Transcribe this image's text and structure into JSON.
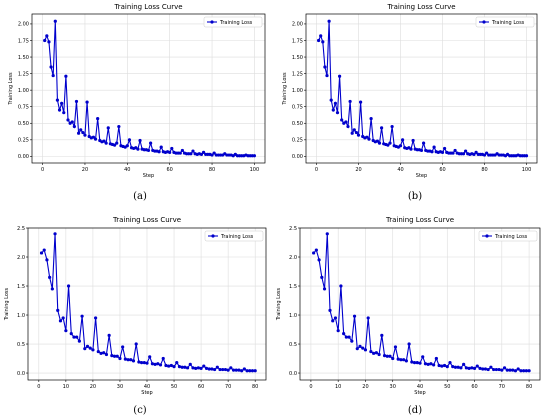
{
  "colors": {
    "series": "#0000cc",
    "grid": "#dddddd",
    "axis": "#000000"
  },
  "chart_data": [
    {
      "type": "line",
      "panel": "a",
      "caption": "(a)",
      "title": "Training Loss Curve",
      "xlabel": "Step",
      "ylabel": "Training Loss",
      "xlim": [
        -5,
        105
      ],
      "ylim": [
        -0.1,
        2.15
      ],
      "xticks": [
        0,
        20,
        40,
        60,
        80,
        100
      ],
      "yticks": [
        0.0,
        0.25,
        0.5,
        0.75,
        1.0,
        1.25,
        1.5,
        1.75,
        2.0
      ],
      "ytick_labels": [
        "0.00",
        "0.25",
        "0.50",
        "0.75",
        "1.00",
        "1.25",
        "1.50",
        "1.75",
        "2.00"
      ],
      "grid": true,
      "legend": "top-right",
      "series": [
        {
          "name": "Training Loss",
          "x": [
            1,
            2,
            3,
            4,
            5,
            6,
            7,
            8,
            9,
            10,
            11,
            12,
            13,
            14,
            15,
            16,
            17,
            18,
            19,
            20,
            21,
            22,
            23,
            24,
            25,
            26,
            27,
            28,
            29,
            30,
            31,
            32,
            33,
            34,
            35,
            36,
            37,
            38,
            39,
            40,
            41,
            42,
            43,
            44,
            45,
            46,
            47,
            48,
            49,
            50,
            51,
            52,
            53,
            54,
            55,
            56,
            57,
            58,
            59,
            60,
            61,
            62,
            63,
            64,
            65,
            66,
            67,
            68,
            69,
            70,
            71,
            72,
            73,
            74,
            75,
            76,
            77,
            78,
            79,
            80,
            81,
            82,
            83,
            84,
            85,
            86,
            87,
            88,
            89,
            90,
            91,
            92,
            93,
            94,
            95,
            96,
            97,
            98,
            99,
            100
          ],
          "y": [
            1.75,
            1.82,
            1.73,
            1.35,
            1.22,
            2.04,
            0.85,
            0.7,
            0.8,
            0.66,
            1.21,
            0.55,
            0.5,
            0.52,
            0.45,
            0.83,
            0.35,
            0.4,
            0.36,
            0.32,
            0.82,
            0.3,
            0.28,
            0.29,
            0.26,
            0.57,
            0.24,
            0.22,
            0.23,
            0.2,
            0.43,
            0.19,
            0.18,
            0.17,
            0.2,
            0.45,
            0.16,
            0.15,
            0.14,
            0.16,
            0.25,
            0.13,
            0.12,
            0.13,
            0.11,
            0.24,
            0.11,
            0.1,
            0.1,
            0.09,
            0.2,
            0.09,
            0.08,
            0.08,
            0.07,
            0.14,
            0.07,
            0.06,
            0.07,
            0.06,
            0.12,
            0.06,
            0.05,
            0.05,
            0.05,
            0.09,
            0.05,
            0.04,
            0.04,
            0.04,
            0.08,
            0.04,
            0.03,
            0.04,
            0.03,
            0.06,
            0.03,
            0.03,
            0.03,
            0.02,
            0.05,
            0.02,
            0.02,
            0.02,
            0.02,
            0.04,
            0.02,
            0.02,
            0.02,
            0.01,
            0.03,
            0.01,
            0.01,
            0.01,
            0.01,
            0.02,
            0.01,
            0.01,
            0.01,
            0.01
          ]
        }
      ]
    },
    {
      "type": "line",
      "panel": "b",
      "caption": "(b)",
      "title": "Training Loss Curve",
      "xlabel": "Step",
      "ylabel": "Training Loss",
      "xlim": [
        -5,
        105
      ],
      "ylim": [
        -0.1,
        2.15
      ],
      "xticks": [
        0,
        20,
        40,
        60,
        80,
        100
      ],
      "yticks": [
        0.0,
        0.25,
        0.5,
        0.75,
        1.0,
        1.25,
        1.5,
        1.75,
        2.0
      ],
      "ytick_labels": [
        "0.00",
        "0.25",
        "0.50",
        "0.75",
        "1.00",
        "1.25",
        "1.50",
        "1.75",
        "2.00"
      ],
      "grid": true,
      "legend": "top-right",
      "series": [
        {
          "name": "Training Loss",
          "x": [
            1,
            2,
            3,
            4,
            5,
            6,
            7,
            8,
            9,
            10,
            11,
            12,
            13,
            14,
            15,
            16,
            17,
            18,
            19,
            20,
            21,
            22,
            23,
            24,
            25,
            26,
            27,
            28,
            29,
            30,
            31,
            32,
            33,
            34,
            35,
            36,
            37,
            38,
            39,
            40,
            41,
            42,
            43,
            44,
            45,
            46,
            47,
            48,
            49,
            50,
            51,
            52,
            53,
            54,
            55,
            56,
            57,
            58,
            59,
            60,
            61,
            62,
            63,
            64,
            65,
            66,
            67,
            68,
            69,
            70,
            71,
            72,
            73,
            74,
            75,
            76,
            77,
            78,
            79,
            80,
            81,
            82,
            83,
            84,
            85,
            86,
            87,
            88,
            89,
            90,
            91,
            92,
            93,
            94,
            95,
            96,
            97,
            98,
            99,
            100
          ],
          "y": [
            1.75,
            1.82,
            1.73,
            1.35,
            1.22,
            2.04,
            0.85,
            0.7,
            0.8,
            0.66,
            1.21,
            0.55,
            0.5,
            0.52,
            0.45,
            0.83,
            0.35,
            0.4,
            0.36,
            0.32,
            0.82,
            0.3,
            0.28,
            0.29,
            0.26,
            0.57,
            0.24,
            0.22,
            0.23,
            0.2,
            0.43,
            0.19,
            0.18,
            0.17,
            0.2,
            0.45,
            0.16,
            0.15,
            0.14,
            0.16,
            0.25,
            0.13,
            0.12,
            0.13,
            0.11,
            0.24,
            0.11,
            0.1,
            0.1,
            0.09,
            0.2,
            0.09,
            0.08,
            0.08,
            0.07,
            0.14,
            0.07,
            0.06,
            0.07,
            0.06,
            0.12,
            0.06,
            0.05,
            0.05,
            0.05,
            0.09,
            0.05,
            0.04,
            0.04,
            0.04,
            0.08,
            0.04,
            0.03,
            0.04,
            0.03,
            0.06,
            0.03,
            0.03,
            0.03,
            0.02,
            0.05,
            0.02,
            0.02,
            0.02,
            0.02,
            0.04,
            0.02,
            0.02,
            0.02,
            0.01,
            0.03,
            0.01,
            0.01,
            0.01,
            0.01,
            0.02,
            0.01,
            0.01,
            0.01,
            0.01
          ]
        }
      ]
    },
    {
      "type": "line",
      "panel": "c",
      "caption": "(c)",
      "title": "Training Loss Curve",
      "xlabel": "Step",
      "ylabel": "Training Loss",
      "xlim": [
        -4,
        84
      ],
      "ylim": [
        -0.12,
        2.5
      ],
      "xticks": [
        0,
        10,
        20,
        30,
        40,
        50,
        60,
        70,
        80
      ],
      "yticks": [
        0.0,
        0.5,
        1.0,
        1.5,
        2.0,
        2.5
      ],
      "ytick_labels": [
        "0.0",
        "0.5",
        "1.0",
        "1.5",
        "2.0",
        "2.5"
      ],
      "grid": true,
      "legend": "top-right",
      "series": [
        {
          "name": "Training Loss",
          "x": [
            1,
            2,
            3,
            4,
            5,
            6,
            7,
            8,
            9,
            10,
            11,
            12,
            13,
            14,
            15,
            16,
            17,
            18,
            19,
            20,
            21,
            22,
            23,
            24,
            25,
            26,
            27,
            28,
            29,
            30,
            31,
            32,
            33,
            34,
            35,
            36,
            37,
            38,
            39,
            40,
            41,
            42,
            43,
            44,
            45,
            46,
            47,
            48,
            49,
            50,
            51,
            52,
            53,
            54,
            55,
            56,
            57,
            58,
            59,
            60,
            61,
            62,
            63,
            64,
            65,
            66,
            67,
            68,
            69,
            70,
            71,
            72,
            73,
            74,
            75,
            76,
            77,
            78,
            79,
            80
          ],
          "y": [
            2.07,
            2.12,
            1.95,
            1.65,
            1.45,
            2.4,
            1.08,
            0.9,
            0.95,
            0.73,
            1.5,
            0.68,
            0.62,
            0.62,
            0.55,
            0.98,
            0.42,
            0.46,
            0.43,
            0.4,
            0.95,
            0.37,
            0.34,
            0.35,
            0.32,
            0.65,
            0.3,
            0.29,
            0.29,
            0.25,
            0.45,
            0.24,
            0.23,
            0.23,
            0.21,
            0.5,
            0.19,
            0.18,
            0.18,
            0.17,
            0.28,
            0.16,
            0.15,
            0.16,
            0.14,
            0.25,
            0.13,
            0.12,
            0.13,
            0.11,
            0.18,
            0.11,
            0.1,
            0.1,
            0.09,
            0.15,
            0.09,
            0.08,
            0.09,
            0.08,
            0.12,
            0.08,
            0.07,
            0.07,
            0.06,
            0.1,
            0.06,
            0.06,
            0.06,
            0.05,
            0.09,
            0.05,
            0.05,
            0.05,
            0.04,
            0.07,
            0.04,
            0.04,
            0.04,
            0.04
          ]
        }
      ]
    },
    {
      "type": "line",
      "panel": "d",
      "caption": "(d)",
      "title": "Training Loss Curve",
      "xlabel": "Step",
      "ylabel": "Training Loss",
      "xlim": [
        -4,
        84
      ],
      "ylim": [
        -0.12,
        2.5
      ],
      "xticks": [
        0,
        10,
        20,
        30,
        40,
        50,
        60,
        70,
        80
      ],
      "yticks": [
        0.0,
        0.5,
        1.0,
        1.5,
        2.0,
        2.5
      ],
      "ytick_labels": [
        "0.0",
        "0.5",
        "1.0",
        "1.5",
        "2.0",
        "2.5"
      ],
      "grid": true,
      "legend": "top-right",
      "series": [
        {
          "name": "Training Loss",
          "x": [
            1,
            2,
            3,
            4,
            5,
            6,
            7,
            8,
            9,
            10,
            11,
            12,
            13,
            14,
            15,
            16,
            17,
            18,
            19,
            20,
            21,
            22,
            23,
            24,
            25,
            26,
            27,
            28,
            29,
            30,
            31,
            32,
            33,
            34,
            35,
            36,
            37,
            38,
            39,
            40,
            41,
            42,
            43,
            44,
            45,
            46,
            47,
            48,
            49,
            50,
            51,
            52,
            53,
            54,
            55,
            56,
            57,
            58,
            59,
            60,
            61,
            62,
            63,
            64,
            65,
            66,
            67,
            68,
            69,
            70,
            71,
            72,
            73,
            74,
            75,
            76,
            77,
            78,
            79,
            80
          ],
          "y": [
            2.07,
            2.12,
            1.95,
            1.65,
            1.45,
            2.4,
            1.08,
            0.9,
            0.95,
            0.73,
            1.5,
            0.68,
            0.62,
            0.62,
            0.55,
            0.98,
            0.42,
            0.46,
            0.43,
            0.4,
            0.95,
            0.37,
            0.34,
            0.35,
            0.32,
            0.65,
            0.3,
            0.29,
            0.29,
            0.25,
            0.45,
            0.24,
            0.23,
            0.23,
            0.21,
            0.5,
            0.19,
            0.18,
            0.18,
            0.17,
            0.28,
            0.16,
            0.15,
            0.16,
            0.14,
            0.25,
            0.13,
            0.12,
            0.13,
            0.11,
            0.18,
            0.11,
            0.1,
            0.1,
            0.09,
            0.15,
            0.09,
            0.08,
            0.09,
            0.08,
            0.12,
            0.08,
            0.07,
            0.07,
            0.06,
            0.1,
            0.06,
            0.06,
            0.06,
            0.05,
            0.09,
            0.05,
            0.05,
            0.05,
            0.04,
            0.07,
            0.04,
            0.04,
            0.04,
            0.04
          ]
        }
      ]
    }
  ]
}
